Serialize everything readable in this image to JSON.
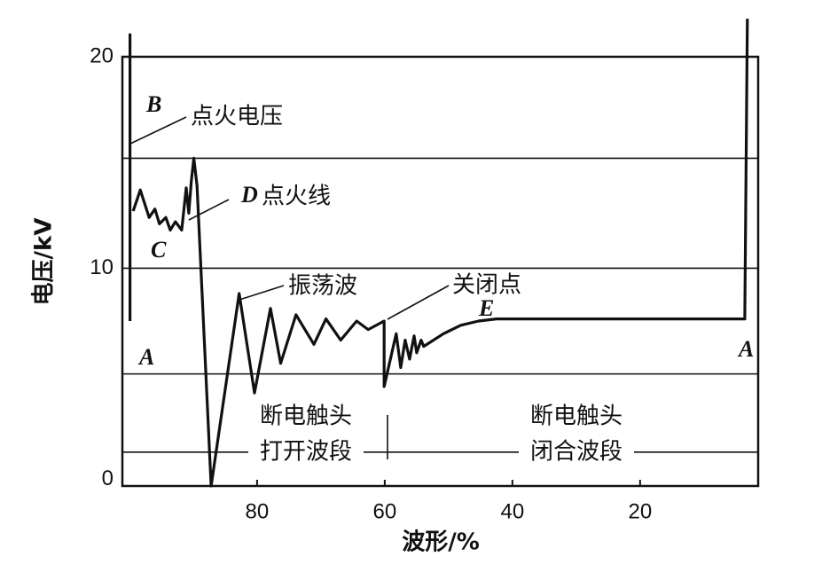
{
  "chart_data": {
    "type": "line",
    "x_label": "波形/%",
    "y_label": "电压/kV",
    "xlim": [
      101.1,
      1.5
    ],
    "ylim": [
      -0.3,
      20
    ],
    "xticks": [
      80,
      60,
      40,
      20
    ],
    "yticks": [
      0,
      10,
      20
    ],
    "reference_lines": [
      15.2,
      10,
      5,
      1.3
    ],
    "series": [
      {
        "name": null,
        "color": "#111111",
        "x": [
          99.9,
          99.9,
          null,
          99.4,
          98.3,
          96.9,
          96.0,
          95.3,
          94.3,
          93.6,
          92.8,
          91.8,
          91.1,
          90.7,
          90.3,
          89.9,
          89.4,
          87.2,
          82.8,
          80.4,
          77.9,
          76.3,
          73.9,
          71.1,
          69.2,
          66.9,
          64.4,
          62.6,
          60.1,
          60.1,
          58.2,
          57.5,
          56.8,
          56.1,
          55.4,
          55.0,
          54.3,
          53.9,
          50.8,
          48.1,
          45.3,
          42.5,
          3.6,
          3.2
        ],
        "values": [
          7.5,
          21.1,
          null,
          12.7,
          13.7,
          12.4,
          12.8,
          12.1,
          12.4,
          11.8,
          12.2,
          11.8,
          13.8,
          12.6,
          14.1,
          15.2,
          13.9,
          -0.3,
          8.8,
          4.1,
          8.1,
          5.5,
          7.8,
          6.4,
          7.6,
          6.6,
          7.5,
          7.1,
          7.5,
          4.4,
          6.9,
          5.3,
          6.6,
          5.7,
          6.8,
          6.0,
          6.6,
          6.3,
          6.9,
          7.3,
          7.5,
          7.6,
          7.6,
          21.8
        ]
      }
    ],
    "annotations": [
      "B",
      "点火电压",
      "D",
      "点火线",
      "C",
      "振荡波",
      "关闭点",
      "E",
      "A",
      "A",
      "断电触头",
      "打开波段",
      "断电触头",
      "闭合波段"
    ]
  }
}
